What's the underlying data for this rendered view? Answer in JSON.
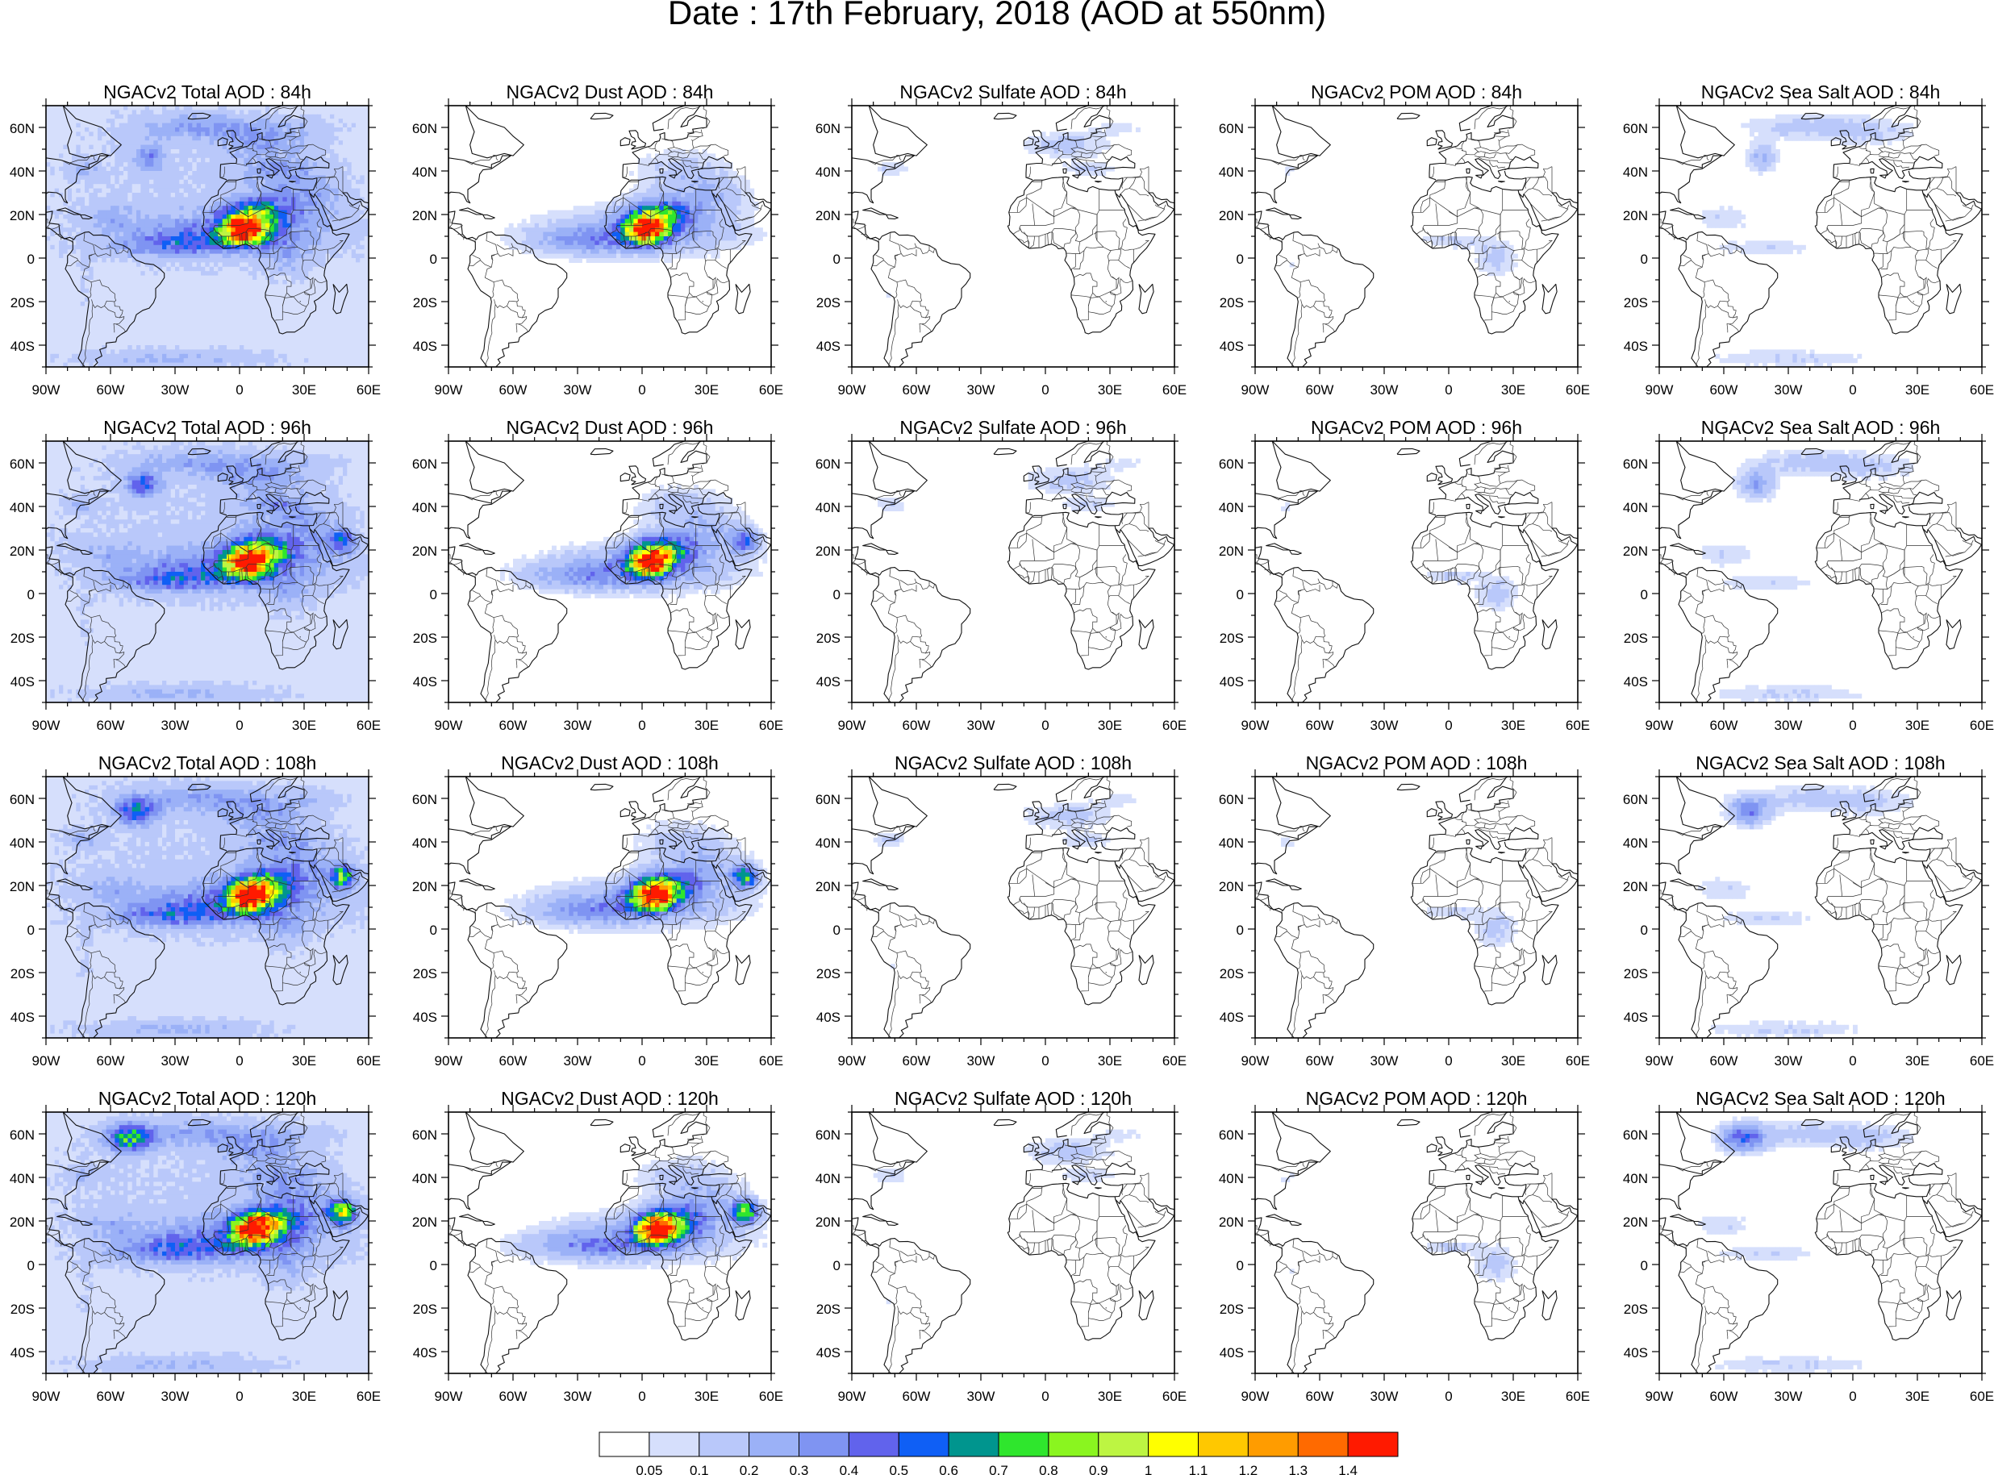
{
  "title": "Date : 17th February, 2018 (AOD at 550nm)",
  "rows": [
    {
      "hour": "84h",
      "panels": [
        {
          "title": "NGACv2 Total AOD : 84h",
          "type": "total"
        },
        {
          "title": "NGACv2 Dust AOD : 84h",
          "type": "dust"
        },
        {
          "title": "NGACv2 Sulfate AOD : 84h",
          "type": "sulfate"
        },
        {
          "title": "NGACv2 POM AOD : 84h",
          "type": "pom"
        },
        {
          "title": "NGACv2 Sea Salt AOD : 84h",
          "type": "seasalt"
        }
      ]
    },
    {
      "hour": "96h",
      "panels": [
        {
          "title": "NGACv2 Total AOD : 96h",
          "type": "total"
        },
        {
          "title": "NGACv2 Dust AOD : 96h",
          "type": "dust"
        },
        {
          "title": "NGACv2 Sulfate AOD : 96h",
          "type": "sulfate"
        },
        {
          "title": "NGACv2 POM AOD : 96h",
          "type": "pom"
        },
        {
          "title": "NGACv2 Sea Salt AOD : 96h",
          "type": "seasalt"
        }
      ]
    },
    {
      "hour": "108h",
      "panels": [
        {
          "title": "NGACv2 Total AOD : 108h",
          "type": "total"
        },
        {
          "title": "NGACv2 Dust AOD : 108h",
          "type": "dust"
        },
        {
          "title": "NGACv2 Sulfate AOD : 108h",
          "type": "sulfate"
        },
        {
          "title": "NGACv2 POM AOD : 108h",
          "type": "pom"
        },
        {
          "title": "NGACv2 Sea Salt AOD : 108h",
          "type": "seasalt"
        }
      ]
    },
    {
      "hour": "120h",
      "panels": [
        {
          "title": "NGACv2 Total AOD : 120h",
          "type": "total"
        },
        {
          "title": "NGACv2 Dust AOD : 120h",
          "type": "dust"
        },
        {
          "title": "NGACv2 Sulfate AOD : 120h",
          "type": "sulfate"
        },
        {
          "title": "NGACv2 POM AOD : 120h",
          "type": "pom"
        },
        {
          "title": "NGACv2 Sea Salt  AOD : 120h",
          "type": "seasalt"
        }
      ]
    }
  ],
  "axes": {
    "lat_labels": [
      "60N",
      "40N",
      "20N",
      "0",
      "20S",
      "40S"
    ],
    "lat_values": [
      60,
      40,
      20,
      0,
      -20,
      -40
    ],
    "lon_labels": [
      "90W",
      "60W",
      "30W",
      "0",
      "30E",
      "60E"
    ],
    "lon_values": [
      -90,
      -60,
      -30,
      0,
      30,
      60
    ],
    "lat_range": [
      -50,
      70
    ],
    "lon_range": [
      -90,
      60
    ]
  },
  "colorbar": {
    "labels": [
      "0.05",
      "0.1",
      "0.2",
      "0.3",
      "0.4",
      "0.5",
      "0.6",
      "0.7",
      "0.8",
      "0.9",
      "1",
      "1.1",
      "1.2",
      "1.3",
      "1.4"
    ],
    "colors": [
      "#ffffff",
      "#d6dffc",
      "#b9c8fa",
      "#9bb1f7",
      "#7f94f2",
      "#6163ec",
      "#0f5ff5",
      "#00958e",
      "#2fe62d",
      "#8af51f",
      "#bdf542",
      "#ffff00",
      "#ffc800",
      "#ff9c00",
      "#ff6a00",
      "#ff1a00"
    ]
  }
}
